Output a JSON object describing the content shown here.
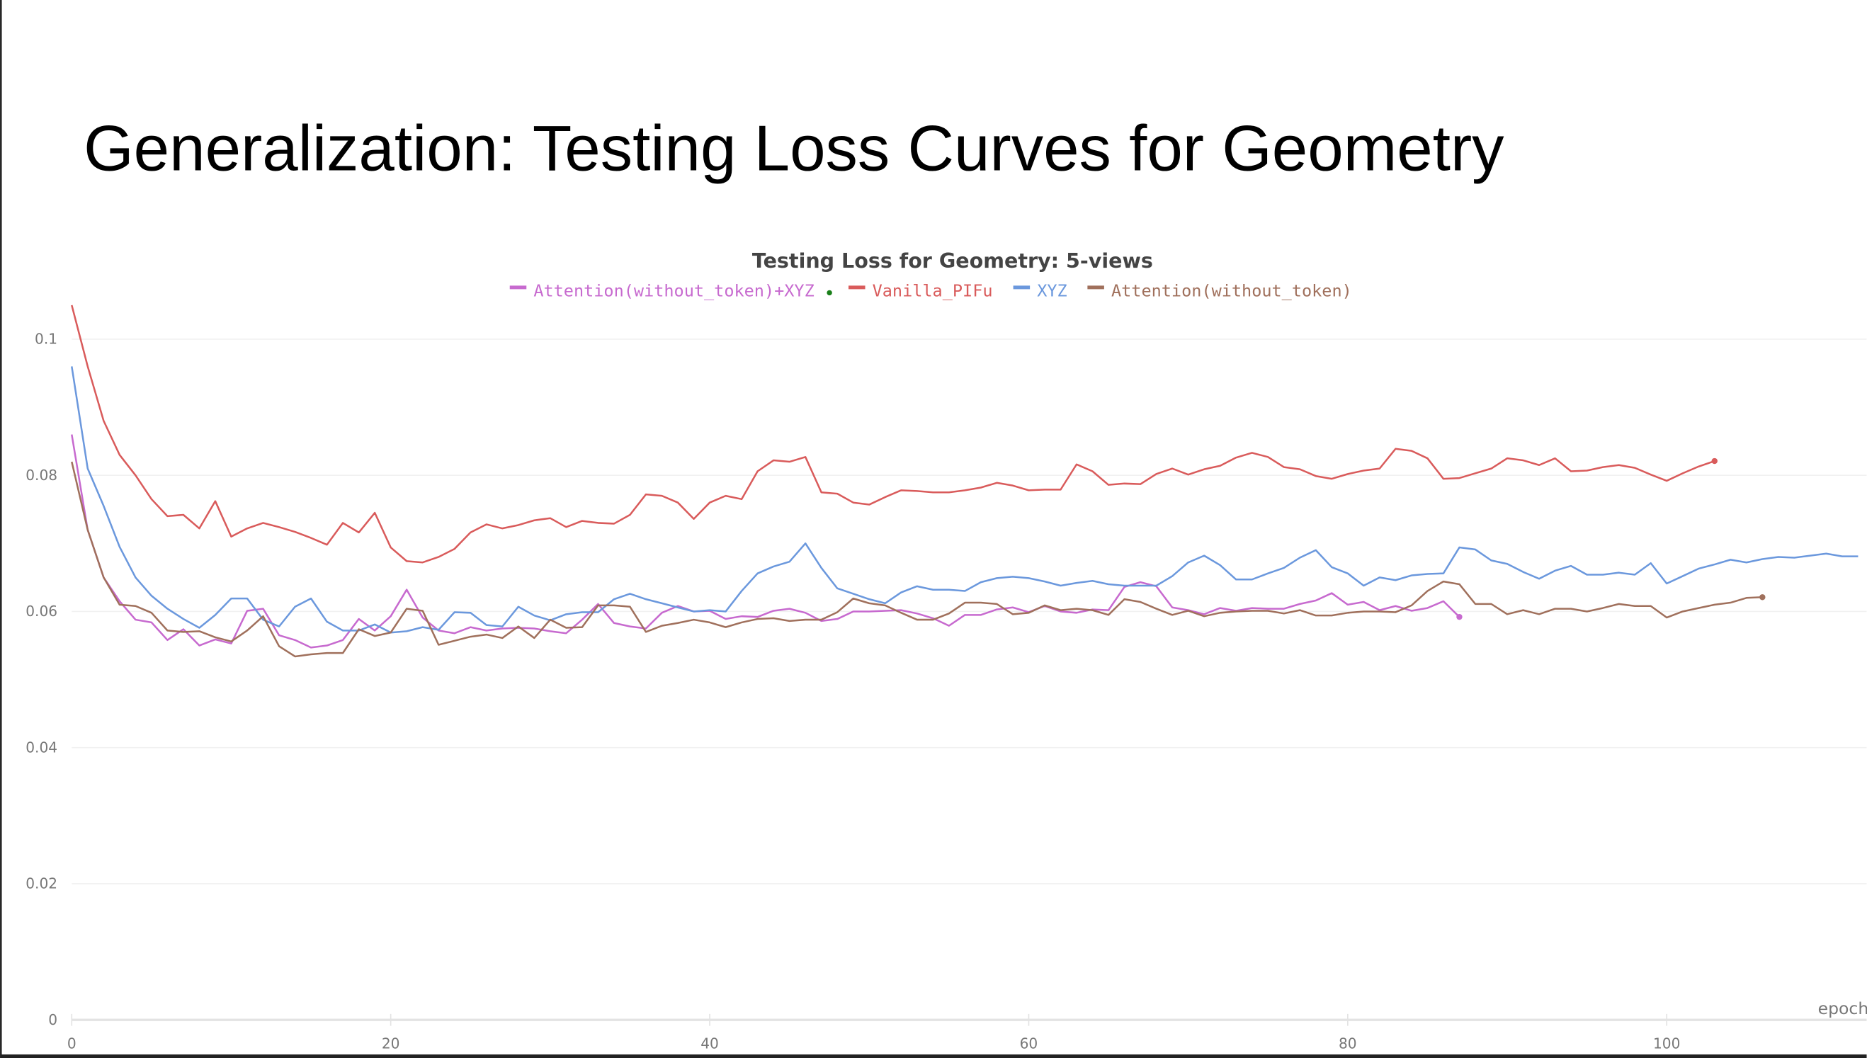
{
  "slide_title": "Generalization: Testing Loss Curves for Geometry",
  "chart_data": {
    "type": "line",
    "title": "Testing Loss for Geometry: 5-views",
    "xlabel": "epoch",
    "ylabel": "",
    "xlim": [
      0,
      112.5
    ],
    "ylim": [
      0,
      0.1
    ],
    "xticks": [
      "0",
      "20",
      "40",
      "60",
      "80",
      "100"
    ],
    "yticks": [
      "0",
      "0.02",
      "0.04",
      "0.06",
      "0.08",
      "0.1"
    ],
    "grid": true,
    "legend_position": "top-center",
    "series": [
      {
        "name": "Attention(without_token)+XYZ",
        "color": "#c76acf",
        "values": [
          0.086,
          0.072,
          0.065,
          0.0615,
          0.0588,
          0.0584,
          0.0558,
          0.0574,
          0.055,
          0.0559,
          0.0553,
          0.0601,
          0.0604,
          0.0565,
          0.0558,
          0.0547,
          0.055,
          0.0558,
          0.0589,
          0.0572,
          0.0593,
          0.0632,
          0.0591,
          0.0572,
          0.0568,
          0.0577,
          0.0572,
          0.0575,
          0.0576,
          0.0575,
          0.0571,
          0.0568,
          0.0588,
          0.0611,
          0.0583,
          0.0578,
          0.0575,
          0.0598,
          0.0608,
          0.06,
          0.0601,
          0.0589,
          0.0593,
          0.0592,
          0.0601,
          0.0604,
          0.0598,
          0.0586,
          0.0589,
          0.06,
          0.06,
          0.0601,
          0.0602,
          0.0597,
          0.059,
          0.0579,
          0.0595,
          0.0595,
          0.0603,
          0.0606,
          0.0599,
          0.0608,
          0.06,
          0.0598,
          0.0603,
          0.0602,
          0.0636,
          0.0643,
          0.0637,
          0.0606,
          0.0602,
          0.0596,
          0.0605,
          0.0601,
          0.0605,
          0.0604,
          0.0604,
          0.0611,
          0.0616,
          0.0627,
          0.061,
          0.0614,
          0.0602,
          0.0608,
          0.0601,
          0.0605,
          0.0615,
          0.0592
        ],
        "end_marker": true
      },
      {
        "name": "Vanilla_PIFu",
        "color": "#d95b5b",
        "values": [
          0.105,
          0.096,
          0.088,
          0.083,
          0.08,
          0.0765,
          0.074,
          0.0742,
          0.0722,
          0.0762,
          0.071,
          0.0722,
          0.073,
          0.0724,
          0.0717,
          0.0708,
          0.0698,
          0.073,
          0.0716,
          0.0745,
          0.0694,
          0.0674,
          0.0672,
          0.068,
          0.0692,
          0.0716,
          0.0728,
          0.0722,
          0.0727,
          0.0734,
          0.0737,
          0.0724,
          0.0733,
          0.073,
          0.0729,
          0.0742,
          0.0772,
          0.077,
          0.076,
          0.0736,
          0.076,
          0.077,
          0.0765,
          0.0806,
          0.0822,
          0.082,
          0.0827,
          0.0775,
          0.0773,
          0.076,
          0.0757,
          0.0768,
          0.0778,
          0.0777,
          0.0775,
          0.0775,
          0.0778,
          0.0782,
          0.0789,
          0.0785,
          0.0778,
          0.0779,
          0.0779,
          0.0816,
          0.0806,
          0.0786,
          0.0788,
          0.0787,
          0.0802,
          0.081,
          0.0801,
          0.0809,
          0.0814,
          0.0826,
          0.0833,
          0.0827,
          0.0812,
          0.0809,
          0.0799,
          0.0795,
          0.0802,
          0.0807,
          0.081,
          0.0839,
          0.0836,
          0.0825,
          0.0795,
          0.0796,
          0.0803,
          0.081,
          0.0825,
          0.0822,
          0.0815,
          0.0825,
          0.0806,
          0.0807,
          0.0812,
          0.0815,
          0.0811,
          0.0801,
          0.0792,
          0.0803,
          0.0813,
          0.0821
        ],
        "end_marker": true
      },
      {
        "name": "XYZ",
        "color": "#6b98dd",
        "values": [
          0.096,
          0.081,
          0.0755,
          0.0695,
          0.065,
          0.0623,
          0.0604,
          0.0589,
          0.0576,
          0.0595,
          0.0619,
          0.0619,
          0.0588,
          0.0578,
          0.0607,
          0.0619,
          0.0585,
          0.0572,
          0.0572,
          0.0581,
          0.0569,
          0.0571,
          0.0577,
          0.0573,
          0.0599,
          0.0598,
          0.058,
          0.0578,
          0.0607,
          0.0594,
          0.0587,
          0.0596,
          0.0599,
          0.0599,
          0.0618,
          0.0626,
          0.0618,
          0.0612,
          0.0606,
          0.06,
          0.0602,
          0.06,
          0.063,
          0.0656,
          0.0666,
          0.0673,
          0.07,
          0.0664,
          0.0634,
          0.0626,
          0.0618,
          0.0612,
          0.0628,
          0.0637,
          0.0632,
          0.0632,
          0.063,
          0.0643,
          0.0649,
          0.0651,
          0.0649,
          0.0644,
          0.0638,
          0.0642,
          0.0645,
          0.064,
          0.0638,
          0.0638,
          0.0638,
          0.0652,
          0.0672,
          0.0682,
          0.0668,
          0.0647,
          0.0647,
          0.0656,
          0.0664,
          0.0679,
          0.069,
          0.0665,
          0.0656,
          0.0638,
          0.065,
          0.0646,
          0.0653,
          0.0655,
          0.0656,
          0.0694,
          0.0691,
          0.0675,
          0.067,
          0.0658,
          0.0648,
          0.066,
          0.0667,
          0.0654,
          0.0654,
          0.0657,
          0.0654,
          0.0671,
          0.0641,
          0.0652,
          0.0663,
          0.0669,
          0.0676,
          0.0672,
          0.0677,
          0.068,
          0.0679,
          0.0682,
          0.0685,
          0.0681,
          0.0681
        ],
        "end_marker": false
      },
      {
        "name": "Attention(without_token)",
        "color": "#a0705c",
        "values": [
          0.082,
          0.072,
          0.065,
          0.061,
          0.0608,
          0.0598,
          0.0572,
          0.057,
          0.0571,
          0.0562,
          0.0556,
          0.0572,
          0.0593,
          0.0549,
          0.0534,
          0.0537,
          0.0539,
          0.0539,
          0.0574,
          0.0564,
          0.0569,
          0.0604,
          0.0601,
          0.0551,
          0.0557,
          0.0563,
          0.0566,
          0.0561,
          0.0578,
          0.0561,
          0.0588,
          0.0576,
          0.0577,
          0.0609,
          0.0609,
          0.0607,
          0.057,
          0.0579,
          0.0583,
          0.0588,
          0.0584,
          0.0577,
          0.0584,
          0.0589,
          0.059,
          0.0586,
          0.0588,
          0.0588,
          0.0599,
          0.0619,
          0.0612,
          0.0609,
          0.0598,
          0.0588,
          0.0588,
          0.0597,
          0.0613,
          0.0613,
          0.0611,
          0.0596,
          0.0598,
          0.0609,
          0.0602,
          0.0604,
          0.0602,
          0.0595,
          0.0618,
          0.0614,
          0.0604,
          0.0595,
          0.0601,
          0.0593,
          0.0598,
          0.06,
          0.0601,
          0.0601,
          0.0597,
          0.0602,
          0.0594,
          0.0594,
          0.0598,
          0.06,
          0.06,
          0.0599,
          0.0609,
          0.063,
          0.0644,
          0.064,
          0.0611,
          0.0611,
          0.0596,
          0.0602,
          0.0596,
          0.0604,
          0.0604,
          0.06,
          0.0605,
          0.0611,
          0.0608,
          0.0608,
          0.0591,
          0.06,
          0.0605,
          0.061,
          0.0613,
          0.062,
          0.0621
        ],
        "end_marker": true
      }
    ],
    "legend_extra_marker_color": "#1a7f1a"
  }
}
